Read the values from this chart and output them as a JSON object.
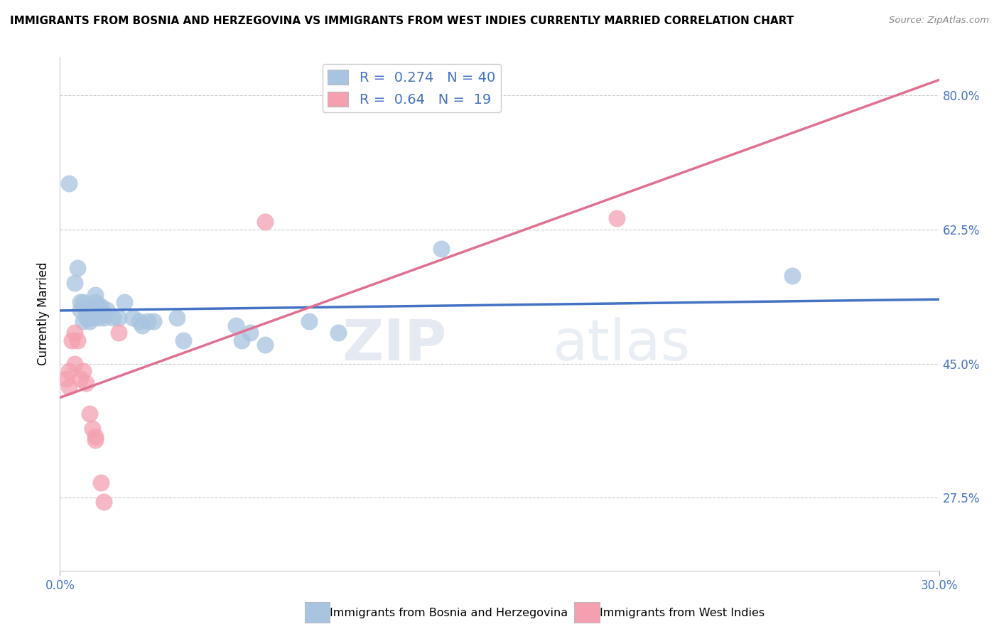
{
  "title": "IMMIGRANTS FROM BOSNIA AND HERZEGOVINA VS IMMIGRANTS FROM WEST INDIES CURRENTLY MARRIED CORRELATION CHART",
  "source": "Source: ZipAtlas.com",
  "xlabel_blue": "Immigrants from Bosnia and Herzegovina",
  "xlabel_pink": "Immigrants from West Indies",
  "ylabel": "Currently Married",
  "xlim": [
    0.0,
    0.3
  ],
  "ylim": [
    0.18,
    0.85
  ],
  "y_ticks_right": [
    0.275,
    0.45,
    0.625,
    0.8
  ],
  "y_tick_labels_right": [
    "27.5%",
    "45.0%",
    "62.5%",
    "80.0%"
  ],
  "blue_R": 0.274,
  "blue_N": 40,
  "pink_R": 0.64,
  "pink_N": 19,
  "blue_color": "#a8c4e0",
  "pink_color": "#f4a0b0",
  "blue_line_color": "#4472c4",
  "pink_line_color": "#e07090",
  "legend_text_color": "#4472c4",
  "grid_color": "#cccccc",
  "watermark_zip": "ZIP",
  "watermark_atlas": "atlas",
  "blue_scatter_x": [
    0.003,
    0.005,
    0.006,
    0.007,
    0.007,
    0.008,
    0.008,
    0.009,
    0.009,
    0.01,
    0.01,
    0.01,
    0.011,
    0.011,
    0.012,
    0.012,
    0.013,
    0.013,
    0.014,
    0.015,
    0.015,
    0.016,
    0.018,
    0.02,
    0.022,
    0.025,
    0.027,
    0.028,
    0.03,
    0.032,
    0.04,
    0.042,
    0.06,
    0.062,
    0.065,
    0.07,
    0.085,
    0.095,
    0.13,
    0.25
  ],
  "blue_scatter_y": [
    0.685,
    0.555,
    0.575,
    0.52,
    0.53,
    0.505,
    0.53,
    0.51,
    0.515,
    0.505,
    0.51,
    0.52,
    0.51,
    0.52,
    0.53,
    0.54,
    0.51,
    0.525,
    0.525,
    0.515,
    0.51,
    0.52,
    0.51,
    0.51,
    0.53,
    0.51,
    0.505,
    0.5,
    0.505,
    0.505,
    0.51,
    0.48,
    0.5,
    0.48,
    0.49,
    0.475,
    0.505,
    0.49,
    0.6,
    0.565
  ],
  "pink_scatter_x": [
    0.002,
    0.003,
    0.003,
    0.004,
    0.005,
    0.005,
    0.006,
    0.007,
    0.008,
    0.009,
    0.01,
    0.011,
    0.012,
    0.012,
    0.014,
    0.015,
    0.02,
    0.07,
    0.19
  ],
  "pink_scatter_y": [
    0.43,
    0.44,
    0.42,
    0.48,
    0.45,
    0.49,
    0.48,
    0.43,
    0.44,
    0.425,
    0.385,
    0.365,
    0.355,
    0.35,
    0.295,
    0.27,
    0.49,
    0.635,
    0.64
  ]
}
